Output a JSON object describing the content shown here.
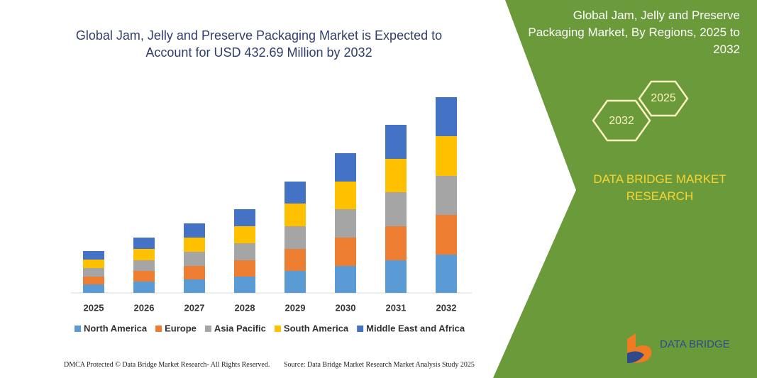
{
  "chart_data": {
    "type": "bar",
    "stacked": true,
    "title": "Global Jam, Jelly and Preserve Packaging Market is Expected to Account for USD 432.69 Million by 2032",
    "categories": [
      "2025",
      "2026",
      "2027",
      "2028",
      "2029",
      "2030",
      "2031",
      "2032"
    ],
    "series": [
      {
        "name": "North America",
        "color": "#5b9bd5",
        "values": [
          12,
          16,
          19,
          23,
          31,
          38,
          46,
          54
        ]
      },
      {
        "name": "Europe",
        "color": "#ed7d31",
        "values": [
          11,
          15,
          19,
          23,
          31,
          40,
          48,
          56
        ]
      },
      {
        "name": "Asia Pacific",
        "color": "#a5a5a5",
        "values": [
          12,
          15,
          20,
          24,
          32,
          40,
          48,
          55
        ]
      },
      {
        "name": "South America",
        "color": "#ffc000",
        "values": [
          12,
          16,
          20,
          24,
          32,
          39,
          47,
          56
        ]
      },
      {
        "name": "Middle East and Africa",
        "color": "#4472c4",
        "values": [
          12,
          16,
          20,
          24,
          31,
          40,
          48,
          55
        ]
      }
    ]
  },
  "panel": {
    "title": "Global Jam, Jelly and Preserve Packaging Market, By Regions, 2025 to 2032",
    "hex_small": "2025",
    "hex_large": "2032",
    "brand": "DATA BRIDGE MARKET RESEARCH",
    "logo": "DATA BRIDGE"
  },
  "footer": {
    "left": "DMCA Protected © Data Bridge Market Research- All Rights Reserved.",
    "right": "Source: Data Bridge Market Research  Market Analysis Study 2025"
  }
}
